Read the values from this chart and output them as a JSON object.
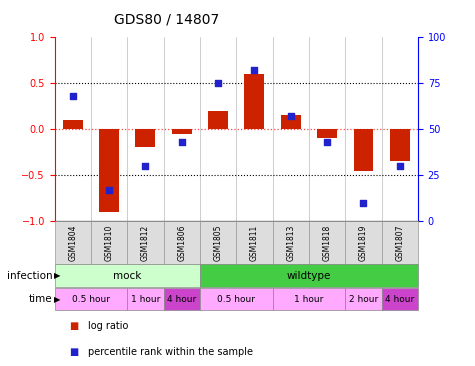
{
  "title": "GDS80 / 14807",
  "samples": [
    "GSM1804",
    "GSM1810",
    "GSM1812",
    "GSM1806",
    "GSM1805",
    "GSM1811",
    "GSM1813",
    "GSM1818",
    "GSM1819",
    "GSM1807"
  ],
  "log_ratio": [
    0.1,
    -0.9,
    -0.2,
    -0.05,
    0.2,
    0.6,
    0.15,
    -0.1,
    -0.45,
    -0.35
  ],
  "percentile": [
    68,
    17,
    30,
    43,
    75,
    82,
    57,
    43,
    10,
    30
  ],
  "bar_color": "#cc2200",
  "dot_color": "#2222cc",
  "ylim_left": [
    -1,
    1
  ],
  "ylim_right": [
    0,
    100
  ],
  "yticks_left": [
    -1,
    -0.5,
    0,
    0.5,
    1
  ],
  "yticks_right": [
    0,
    25,
    50,
    75,
    100
  ],
  "infection_groups": [
    {
      "label": "mock",
      "start": 0,
      "end": 4,
      "color": "#ccffcc"
    },
    {
      "label": "wildtype",
      "start": 4,
      "end": 10,
      "color": "#44cc44"
    }
  ],
  "time_groups": [
    {
      "label": "0.5 hour",
      "start": 0,
      "end": 2,
      "color": "#ffaaff"
    },
    {
      "label": "1 hour",
      "start": 2,
      "end": 3,
      "color": "#ffaaff"
    },
    {
      "label": "4 hour",
      "start": 3,
      "end": 4,
      "color": "#cc44cc"
    },
    {
      "label": "0.5 hour",
      "start": 4,
      "end": 6,
      "color": "#ffaaff"
    },
    {
      "label": "1 hour",
      "start": 6,
      "end": 8,
      "color": "#ffaaff"
    },
    {
      "label": "2 hour",
      "start": 8,
      "end": 9,
      "color": "#ffaaff"
    },
    {
      "label": "4 hour",
      "start": 9,
      "end": 10,
      "color": "#cc44cc"
    }
  ],
  "legend_items": [
    {
      "color": "#cc2200",
      "label": "log ratio"
    },
    {
      "color": "#2222cc",
      "label": "percentile rank within the sample"
    }
  ],
  "infection_label": "infection",
  "time_label": "time"
}
